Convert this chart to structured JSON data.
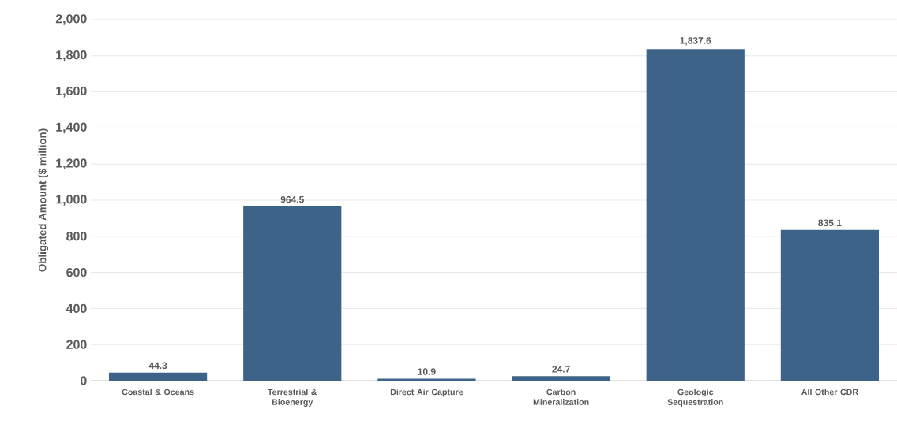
{
  "chart_data": {
    "type": "bar",
    "ylabel": "Obligated Amount ($ million)",
    "categories": [
      "Coastal & Oceans",
      "Terrestrial & Bioenergy",
      "Direct Air Capture",
      "Carbon Mineralization",
      "Geologic Sequestration",
      "All Other CDR"
    ],
    "values": [
      44.3,
      964.5,
      10.9,
      24.7,
      1837.6,
      835.1
    ],
    "value_labels": [
      "44.3",
      "964.5",
      "10.9",
      "24.7",
      "1,837.6",
      "835.1"
    ],
    "color": "#3e6389",
    "ylim": [
      0,
      2000
    ],
    "yticks": [
      0,
      200,
      400,
      600,
      800,
      {
        "value": 1000,
        "label": "1,000"
      },
      {
        "value": 1200,
        "label": "1,200"
      },
      {
        "value": 1400,
        "label": "1,400"
      },
      {
        "value": 1600,
        "label": "1,600"
      },
      {
        "value": 1800,
        "label": "1,800"
      },
      {
        "value": 2000,
        "label": "2,000"
      }
    ],
    "grid": "y"
  }
}
